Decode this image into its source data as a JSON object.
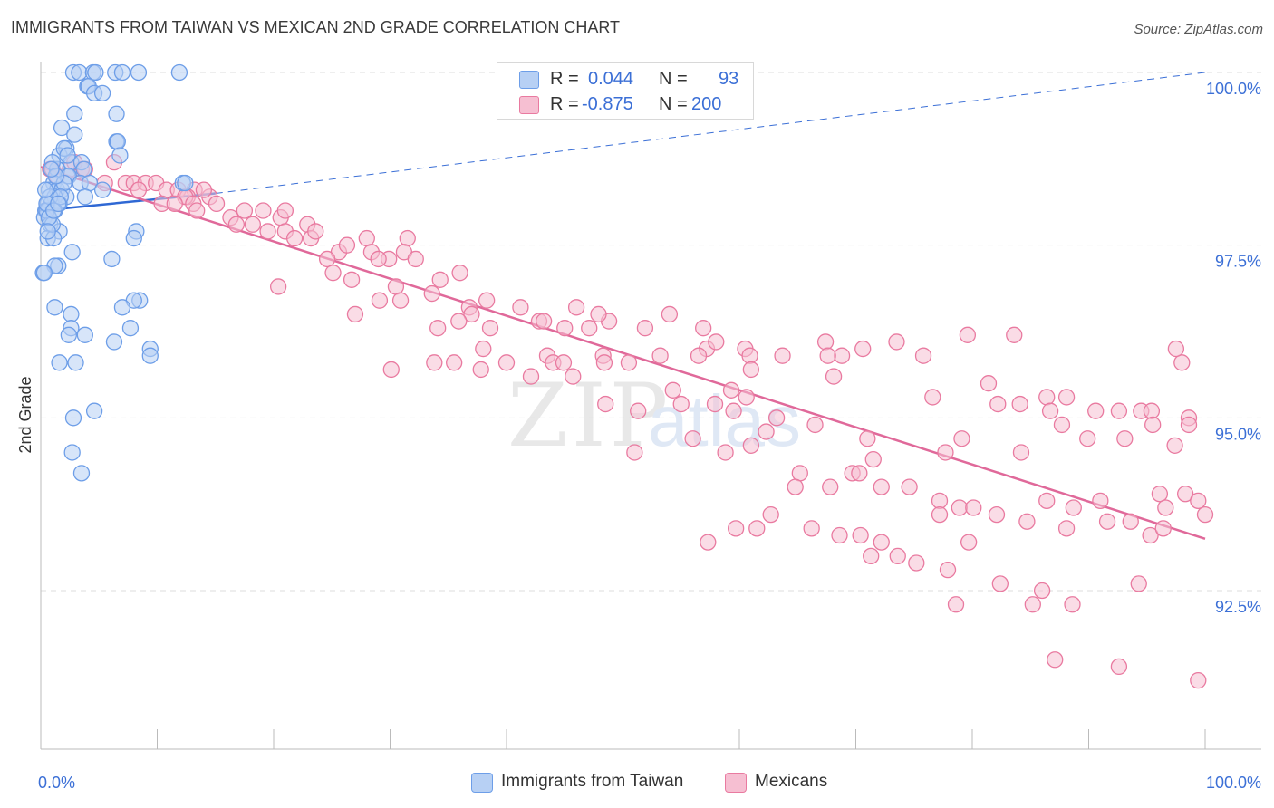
{
  "title": "IMMIGRANTS FROM TAIWAN VS MEXICAN 2ND GRADE CORRELATION CHART",
  "source": "Source: ZipAtlas.com",
  "legend": {
    "r_label": "R =",
    "n_label": "N =",
    "rows": [
      {
        "r": "0.044",
        "n": "93"
      },
      {
        "r": "-0.875",
        "n": "200"
      }
    ]
  },
  "watermark": {
    "zip": "ZIP",
    "atlas": "atlas"
  },
  "chart_data": {
    "type": "scatter",
    "title": "IMMIGRANTS FROM TAIWAN VS MEXICAN 2ND GRADE CORRELATION CHART",
    "xlabel": "",
    "ylabel": "2nd Grade",
    "xlim": [
      0,
      100
    ],
    "ylim": [
      90.0,
      100.2
    ],
    "x_tick_labels": [
      "0.0%",
      "100.0%"
    ],
    "y_ticks": [
      {
        "value": 100.0,
        "label": "100.0%"
      },
      {
        "value": 97.5,
        "label": "97.5%"
      },
      {
        "value": 95.0,
        "label": "95.0%"
      },
      {
        "value": 92.5,
        "label": "92.5%"
      }
    ],
    "series": [
      {
        "name": "Immigrants from Taiwan",
        "color": "#6d9ee8",
        "fill": "#b7d0f4",
        "trend": {
          "x": [
            0,
            15
          ],
          "y": [
            98.0,
            98.25
          ],
          "extended": {
            "x": [
              15,
              100
            ],
            "y": [
              98.25,
              100.0
            ]
          }
        },
        "points": [
          [
            2.8,
            100
          ],
          [
            3.3,
            100
          ],
          [
            4.5,
            100
          ],
          [
            4.7,
            100
          ],
          [
            6.4,
            100
          ],
          [
            7.0,
            100
          ],
          [
            8.4,
            100
          ],
          [
            11.9,
            100
          ],
          [
            4.0,
            99.8
          ],
          [
            4.1,
            99.8
          ],
          [
            4.6,
            99.7
          ],
          [
            5.3,
            99.7
          ],
          [
            2.9,
            99.4
          ],
          [
            6.5,
            99.4
          ],
          [
            1.8,
            99.2
          ],
          [
            2.9,
            99.1
          ],
          [
            6.5,
            99.0
          ],
          [
            6.6,
            99.0
          ],
          [
            2.2,
            98.9
          ],
          [
            1.6,
            98.8
          ],
          [
            2.6,
            98.7
          ],
          [
            3.5,
            98.7
          ],
          [
            6.8,
            98.8
          ],
          [
            2.3,
            98.5
          ],
          [
            1.4,
            98.6
          ],
          [
            2.4,
            98.5
          ],
          [
            3.7,
            98.6
          ],
          [
            3.4,
            98.4
          ],
          [
            4.2,
            98.4
          ],
          [
            1.1,
            98.4
          ],
          [
            12.2,
            98.4
          ],
          [
            12.4,
            98.4
          ],
          [
            0.7,
            98.3
          ],
          [
            1.4,
            98.3
          ],
          [
            1.8,
            98.3
          ],
          [
            2.2,
            98.2
          ],
          [
            3.8,
            98.2
          ],
          [
            5.3,
            98.3
          ],
          [
            1.2,
            98.2
          ],
          [
            0.6,
            98.1
          ],
          [
            0.9,
            98.1
          ],
          [
            1.6,
            98.1
          ],
          [
            0.4,
            98.0
          ],
          [
            0.6,
            98.0
          ],
          [
            1.2,
            98.0
          ],
          [
            0.3,
            97.9
          ],
          [
            0.7,
            97.9
          ],
          [
            0.8,
            97.8
          ],
          [
            1.6,
            97.7
          ],
          [
            8.2,
            97.7
          ],
          [
            0.6,
            97.6
          ],
          [
            1.1,
            97.6
          ],
          [
            8.0,
            97.6
          ],
          [
            2.7,
            97.4
          ],
          [
            6.1,
            97.3
          ],
          [
            1.5,
            97.2
          ],
          [
            1.2,
            97.2
          ],
          [
            0.2,
            97.1
          ],
          [
            0.3,
            97.1
          ],
          [
            8.5,
            96.7
          ],
          [
            8.0,
            96.7
          ],
          [
            7.0,
            96.6
          ],
          [
            2.6,
            96.5
          ],
          [
            1.2,
            96.6
          ],
          [
            7.7,
            96.3
          ],
          [
            2.6,
            96.3
          ],
          [
            3.8,
            96.2
          ],
          [
            2.4,
            96.2
          ],
          [
            6.3,
            96.1
          ],
          [
            9.4,
            96.0
          ],
          [
            9.4,
            95.9
          ],
          [
            1.6,
            95.8
          ],
          [
            3.0,
            95.8
          ],
          [
            4.6,
            95.1
          ],
          [
            2.8,
            95.0
          ],
          [
            2.7,
            94.5
          ],
          [
            3.5,
            94.2
          ],
          [
            1.0,
            98.7
          ],
          [
            2.0,
            98.9
          ],
          [
            0.5,
            98.0
          ],
          [
            1.0,
            97.8
          ],
          [
            0.8,
            98.2
          ],
          [
            2.0,
            98.4
          ],
          [
            1.3,
            98.5
          ],
          [
            0.9,
            98.6
          ],
          [
            0.5,
            98.1
          ],
          [
            0.7,
            97.9
          ],
          [
            1.1,
            98.0
          ],
          [
            0.4,
            98.3
          ],
          [
            1.7,
            98.2
          ],
          [
            0.6,
            97.7
          ],
          [
            1.5,
            98.1
          ],
          [
            2.3,
            98.8
          ]
        ]
      },
      {
        "name": "Mexicans",
        "color": "#e97aa0",
        "fill": "#f6bfd2",
        "trend": {
          "x": [
            0,
            100
          ],
          "y": [
            98.63,
            93.25
          ]
        },
        "points": [
          [
            0.8,
            98.6
          ],
          [
            1.0,
            98.6
          ],
          [
            2.5,
            98.6
          ],
          [
            3.5,
            98.6
          ],
          [
            1.4,
            98.5
          ],
          [
            2.9,
            98.7
          ],
          [
            3.8,
            98.6
          ],
          [
            6.3,
            98.7
          ],
          [
            5.5,
            98.4
          ],
          [
            7.3,
            98.4
          ],
          [
            8.0,
            98.4
          ],
          [
            9.0,
            98.4
          ],
          [
            8.4,
            98.3
          ],
          [
            9.9,
            98.4
          ],
          [
            10.8,
            98.3
          ],
          [
            11.8,
            98.3
          ],
          [
            13.2,
            98.3
          ],
          [
            14.5,
            98.2
          ],
          [
            14.0,
            98.3
          ],
          [
            12.6,
            98.2
          ],
          [
            12.4,
            98.2
          ],
          [
            10.4,
            98.1
          ],
          [
            13.1,
            98.1
          ],
          [
            15.1,
            98.1
          ],
          [
            17.5,
            98.0
          ],
          [
            19.1,
            98.0
          ],
          [
            20.6,
            97.9
          ],
          [
            16.3,
            97.9
          ],
          [
            18.2,
            97.8
          ],
          [
            22.9,
            97.8
          ],
          [
            19.5,
            97.7
          ],
          [
            21.0,
            97.7
          ],
          [
            21.8,
            97.6
          ],
          [
            23.2,
            97.6
          ],
          [
            28.0,
            97.6
          ],
          [
            25.6,
            97.4
          ],
          [
            28.4,
            97.4
          ],
          [
            31.5,
            97.6
          ],
          [
            31.2,
            97.4
          ],
          [
            24.6,
            97.3
          ],
          [
            29.9,
            97.3
          ],
          [
            20.4,
            96.9
          ],
          [
            25.1,
            97.1
          ],
          [
            26.7,
            97.0
          ],
          [
            34.3,
            97.0
          ],
          [
            36.0,
            97.1
          ],
          [
            30.5,
            96.9
          ],
          [
            30.9,
            96.7
          ],
          [
            33.6,
            96.8
          ],
          [
            36.8,
            96.6
          ],
          [
            37.0,
            96.5
          ],
          [
            38.3,
            96.7
          ],
          [
            41.2,
            96.6
          ],
          [
            46.0,
            96.6
          ],
          [
            48.8,
            96.4
          ],
          [
            42.8,
            96.4
          ],
          [
            45.0,
            96.3
          ],
          [
            47.1,
            96.3
          ],
          [
            43.2,
            96.4
          ],
          [
            34.1,
            96.3
          ],
          [
            27.0,
            96.5
          ],
          [
            29.1,
            96.7
          ],
          [
            35.9,
            96.4
          ],
          [
            47.9,
            96.5
          ],
          [
            54.0,
            96.5
          ],
          [
            38.6,
            96.3
          ],
          [
            51.9,
            96.3
          ],
          [
            56.9,
            96.3
          ],
          [
            57.2,
            96.0
          ],
          [
            60.5,
            96.0
          ],
          [
            58.0,
            96.1
          ],
          [
            67.4,
            96.1
          ],
          [
            70.6,
            96.0
          ],
          [
            73.5,
            96.1
          ],
          [
            38.0,
            96.0
          ],
          [
            43.5,
            95.9
          ],
          [
            48.3,
            95.9
          ],
          [
            50.5,
            95.8
          ],
          [
            60.9,
            95.9
          ],
          [
            63.7,
            95.9
          ],
          [
            68.8,
            95.9
          ],
          [
            79.6,
            96.2
          ],
          [
            83.6,
            96.2
          ],
          [
            40.0,
            95.8
          ],
          [
            45.7,
            95.6
          ],
          [
            44.0,
            95.8
          ],
          [
            48.4,
            95.8
          ],
          [
            35.5,
            95.8
          ],
          [
            37.8,
            95.7
          ],
          [
            30.1,
            95.7
          ],
          [
            33.8,
            95.8
          ],
          [
            42.1,
            95.6
          ],
          [
            44.9,
            95.8
          ],
          [
            53.2,
            95.9
          ],
          [
            56.5,
            95.9
          ],
          [
            61.0,
            95.7
          ],
          [
            67.6,
            95.9
          ],
          [
            68.1,
            95.6
          ],
          [
            75.8,
            95.9
          ],
          [
            81.4,
            95.5
          ],
          [
            76.6,
            95.3
          ],
          [
            82.2,
            95.2
          ],
          [
            84.1,
            95.2
          ],
          [
            86.4,
            95.3
          ],
          [
            88.1,
            95.3
          ],
          [
            86.7,
            95.1
          ],
          [
            90.6,
            95.1
          ],
          [
            92.6,
            95.1
          ],
          [
            94.5,
            95.1
          ],
          [
            95.4,
            95.1
          ],
          [
            98.6,
            95.0
          ],
          [
            98.0,
            95.8
          ],
          [
            97.5,
            96.0
          ],
          [
            59.3,
            95.4
          ],
          [
            60.6,
            95.3
          ],
          [
            48.5,
            95.2
          ],
          [
            51.3,
            95.1
          ],
          [
            54.3,
            95.4
          ],
          [
            55.0,
            95.2
          ],
          [
            57.9,
            95.2
          ],
          [
            59.5,
            95.1
          ],
          [
            63.2,
            95.0
          ],
          [
            66.5,
            94.9
          ],
          [
            62.3,
            94.8
          ],
          [
            56.0,
            94.7
          ],
          [
            61.0,
            94.6
          ],
          [
            71.0,
            94.7
          ],
          [
            71.5,
            94.4
          ],
          [
            79.1,
            94.7
          ],
          [
            84.2,
            94.5
          ],
          [
            77.7,
            94.5
          ],
          [
            87.7,
            94.9
          ],
          [
            93.1,
            94.7
          ],
          [
            89.9,
            94.7
          ],
          [
            95.5,
            94.9
          ],
          [
            98.6,
            94.9
          ],
          [
            97.4,
            94.6
          ],
          [
            51.0,
            94.5
          ],
          [
            58.8,
            94.5
          ],
          [
            65.2,
            94.2
          ],
          [
            69.7,
            94.2
          ],
          [
            64.8,
            94.0
          ],
          [
            67.8,
            94.0
          ],
          [
            72.2,
            94.0
          ],
          [
            70.3,
            94.2
          ],
          [
            74.6,
            94.0
          ],
          [
            77.2,
            93.8
          ],
          [
            78.9,
            93.7
          ],
          [
            80.1,
            93.7
          ],
          [
            86.4,
            93.8
          ],
          [
            88.7,
            93.7
          ],
          [
            91.0,
            93.8
          ],
          [
            96.1,
            93.9
          ],
          [
            96.6,
            93.7
          ],
          [
            98.3,
            93.9
          ],
          [
            99.4,
            93.8
          ],
          [
            100.0,
            93.6
          ],
          [
            62.7,
            93.6
          ],
          [
            66.2,
            93.4
          ],
          [
            68.6,
            93.3
          ],
          [
            70.4,
            93.3
          ],
          [
            72.2,
            93.2
          ],
          [
            77.2,
            93.6
          ],
          [
            79.7,
            93.2
          ],
          [
            82.1,
            93.6
          ],
          [
            84.7,
            93.5
          ],
          [
            88.1,
            93.4
          ],
          [
            91.6,
            93.5
          ],
          [
            93.6,
            93.5
          ],
          [
            95.3,
            93.3
          ],
          [
            96.4,
            93.4
          ],
          [
            57.3,
            93.2
          ],
          [
            59.7,
            93.4
          ],
          [
            61.5,
            93.4
          ],
          [
            71.3,
            93.0
          ],
          [
            73.6,
            93.0
          ],
          [
            75.2,
            92.9
          ],
          [
            77.9,
            92.8
          ],
          [
            82.4,
            92.6
          ],
          [
            86.0,
            92.5
          ],
          [
            94.3,
            92.6
          ],
          [
            78.6,
            92.3
          ],
          [
            85.2,
            92.3
          ],
          [
            88.6,
            92.3
          ],
          [
            87.1,
            91.5
          ],
          [
            92.6,
            91.4
          ],
          [
            99.4,
            91.2
          ],
          [
            11.5,
            98.1
          ],
          [
            13.4,
            98.0
          ],
          [
            16.8,
            97.8
          ],
          [
            21.0,
            98.0
          ],
          [
            23.6,
            97.7
          ],
          [
            26.3,
            97.5
          ],
          [
            29.0,
            97.3
          ],
          [
            32.2,
            97.3
          ]
        ]
      }
    ]
  }
}
